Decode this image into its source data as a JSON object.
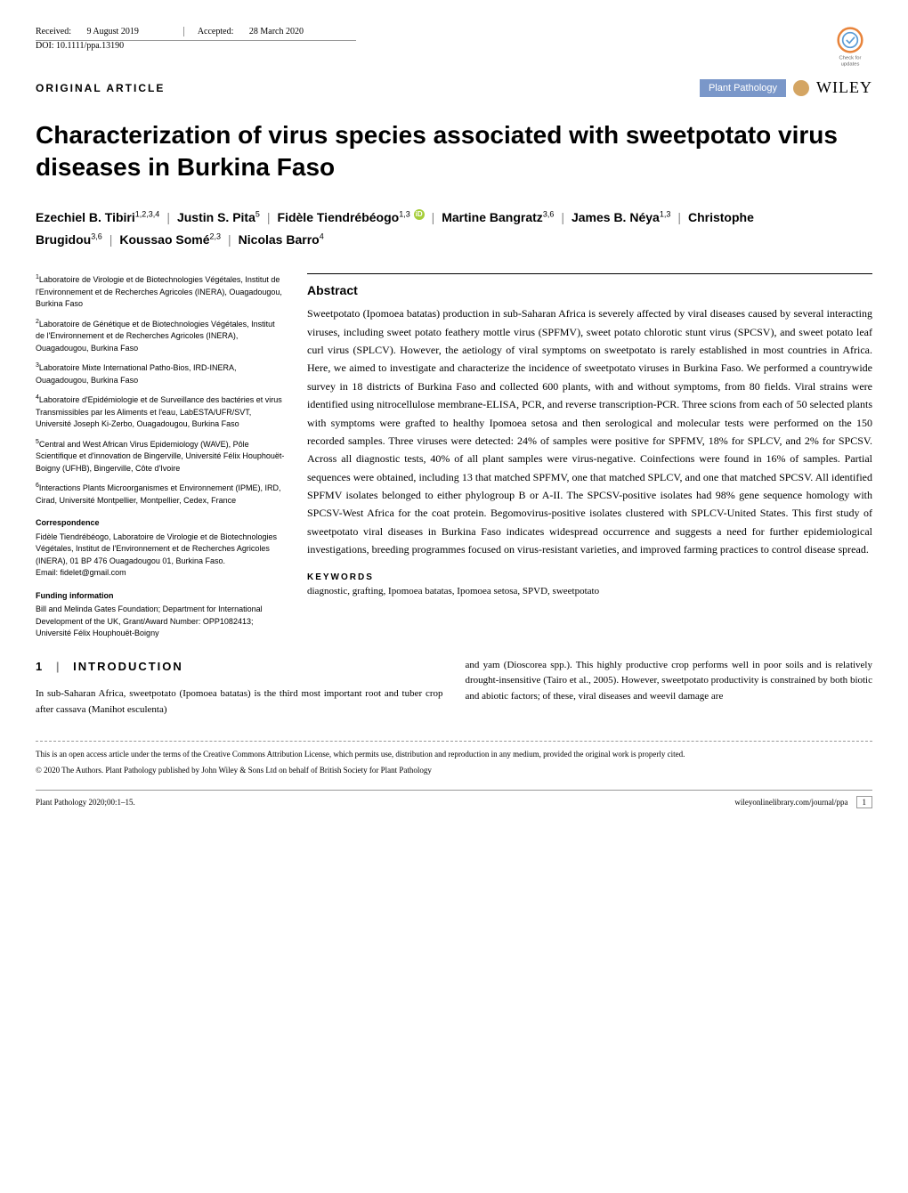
{
  "header": {
    "received_label": "Received:",
    "received_date": "9 August 2019",
    "accepted_label": "Accepted:",
    "accepted_date": "28 March 2020",
    "doi": "DOI: 10.1111/ppa.13190",
    "article_type": "ORIGINAL ARTICLE",
    "journal": "Plant Pathology",
    "publisher": "WILEY",
    "crossmark_top": "Check for",
    "crossmark_bottom": "updates",
    "crossmark_color": "#e8833a",
    "crossmark_check_color": "#5b9bd5"
  },
  "title": "Characterization of virus species associated with sweetpotato virus diseases in Burkina Faso",
  "authors": [
    {
      "name": "Ezechiel B. Tibiri",
      "sup": "1,2,3,4"
    },
    {
      "name": "Justin S. Pita",
      "sup": "5"
    },
    {
      "name": "Fidèle Tiendrébéogo",
      "sup": "1,3",
      "orcid": true
    },
    {
      "name": "Martine Bangratz",
      "sup": "3,6"
    },
    {
      "name": "James B. Néya",
      "sup": "1,3"
    },
    {
      "name": "Christophe Brugidou",
      "sup": "3,6"
    },
    {
      "name": "Koussao Somé",
      "sup": "2,3"
    },
    {
      "name": "Nicolas Barro",
      "sup": "4"
    }
  ],
  "affiliations": [
    {
      "num": "1",
      "text": "Laboratoire de Virologie et de Biotechnologies Végétales, Institut de l'Environnement et de Recherches Agricoles (INERA), Ouagadougou, Burkina Faso"
    },
    {
      "num": "2",
      "text": "Laboratoire de Génétique et de Biotechnologies Végétales, Institut de l'Environnement et de Recherches Agricoles (INERA), Ouagadougou, Burkina Faso"
    },
    {
      "num": "3",
      "text": "Laboratoire Mixte International Patho-Bios, IRD-INERA, Ouagadougou, Burkina Faso"
    },
    {
      "num": "4",
      "text": "Laboratoire d'Epidémiologie et de Surveillance des bactéries et virus Transmissibles par les Aliments et l'eau, LabESTA/UFR/SVT, Université Joseph Ki-Zerbo, Ouagadougou, Burkina Faso"
    },
    {
      "num": "5",
      "text": "Central and West African Virus Epidemiology (WAVE), Pôle Scientifique et d'innovation de Bingerville, Université Félix Houphouët-Boigny (UFHB), Bingerville, Côte d'Ivoire"
    },
    {
      "num": "6",
      "text": "Interactions Plants Microorganismes et Environnement (IPME), IRD, Cirad, Université Montpellier, Montpellier, Cedex, France"
    }
  ],
  "correspondence": {
    "head": "Correspondence",
    "body": "Fidèle Tiendrébéogo, Laboratoire de Virologie et de Biotechnologies Végétales, Institut de l'Environnement et de Recherches Agricoles (INERA), 01 BP 476 Ouagadougou 01, Burkina Faso.",
    "email": "Email: fidelet@gmail.com"
  },
  "funding": {
    "head": "Funding information",
    "body": "Bill and Melinda Gates Foundation; Department for International Development of the UK, Grant/Award Number: OPP1082413; Université Félix Houphouët-Boigny"
  },
  "abstract": {
    "head": "Abstract",
    "body": "Sweetpotato (Ipomoea batatas) production in sub-Saharan Africa is severely affected by viral diseases caused by several interacting viruses, including sweet potato feathery mottle virus (SPFMV), sweet potato chlorotic stunt virus (SPCSV), and sweet potato leaf curl virus (SPLCV). However, the aetiology of viral symptoms on sweetpotato is rarely established in most countries in Africa. Here, we aimed to investigate and characterize the incidence of sweetpotato viruses in Burkina Faso. We performed a countrywide survey in 18 districts of Burkina Faso and collected 600 plants, with and without symptoms, from 80 fields. Viral strains were identified using nitrocellulose membrane-ELISA, PCR, and reverse transcription-PCR. Three scions from each of 50 selected plants with symptoms were grafted to healthy Ipomoea setosa and then serological and molecular tests were performed on the 150 recorded samples. Three viruses were detected: 24% of samples were positive for SPFMV, 18% for SPLCV, and 2% for SPCSV. Across all diagnostic tests, 40% of all plant samples were virus-negative. Coinfections were found in 16% of samples. Partial sequences were obtained, including 13 that matched SPFMV, one that matched SPLCV, and one that matched SPCSV. All identified SPFMV isolates belonged to either phylogroup B or A-II. The SPCSV-positive isolates had 98% gene sequence homology with SPCSV-West Africa for the coat protein. Begomovirus-positive isolates clustered with SPLCV-United States. This first study of sweetpotato viral diseases in Burkina Faso indicates widespread occurrence and suggests a need for further epidemiological investigations, breeding programmes focused on virus-resistant varieties, and improved farming practices to control disease spread."
  },
  "keywords": {
    "head": "KEYWORDS",
    "body": "diagnostic, grafting, Ipomoea batatas, Ipomoea setosa, SPVD, sweetpotato"
  },
  "introduction": {
    "num": "1",
    "head": "INTRODUCTION",
    "left": "In sub-Saharan Africa, sweetpotato (Ipomoea batatas) is the third most important root and tuber crop after cassava (Manihot esculenta)",
    "right": "and yam (Dioscorea spp.). This highly productive crop performs well in poor soils and is relatively drought-insensitive (Tairo et al., 2005). However, sweetpotato productivity is constrained by both biotic and abiotic factors; of these, viral diseases and weevil damage are"
  },
  "license": {
    "line1": "This is an open access article under the terms of the Creative Commons Attribution License, which permits use, distribution and reproduction in any medium, provided the original work is properly cited.",
    "line2": "© 2020 The Authors. Plant Pathology published by John Wiley & Sons Ltd on behalf of British Society for Plant Pathology"
  },
  "footer": {
    "left": "Plant Pathology 2020;00:1–15.",
    "right": "wileyonlinelibrary.com/journal/ppa",
    "page": "1"
  },
  "colors": {
    "badge_bg": "#7a97c9",
    "orcid": "#a6ce39",
    "circle": "#d4a563"
  }
}
